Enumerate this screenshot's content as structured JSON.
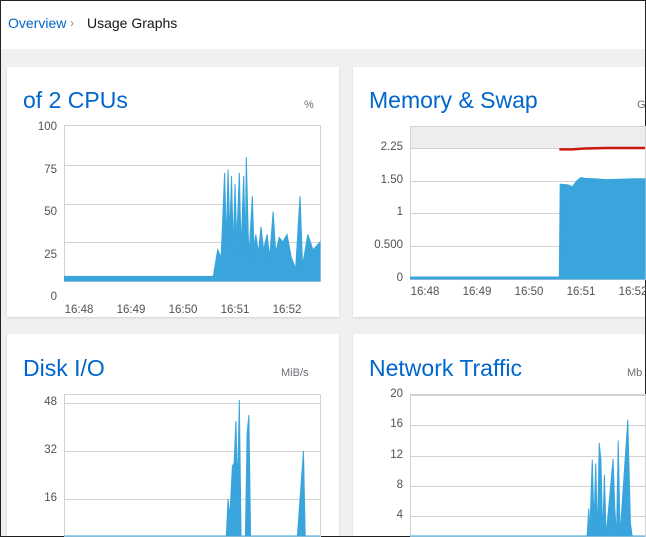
{
  "breadcrumb": {
    "parent": "Overview",
    "separator_icon": "chevron-right-icon",
    "current": "Usage Graphs"
  },
  "colors": {
    "accent": "#0066cc",
    "series": "#39a5dc",
    "swap": "#c9190b",
    "grid": "#d2d2d2"
  },
  "cards": [
    {
      "title": "of 2 CPUs",
      "unit": "%"
    },
    {
      "title": "Memory & Swap",
      "unit": "G"
    },
    {
      "title": "Disk I/O",
      "unit": "MiB/s"
    },
    {
      "title": "Network Traffic",
      "unit": "Mb"
    }
  ],
  "chart_data": [
    {
      "type": "area",
      "title": "of 2 CPUs",
      "ylabel": "%",
      "yticks": [
        "100",
        "75",
        "50",
        "25",
        "0"
      ],
      "ylim": [
        0,
        100
      ],
      "xticks": [
        "16:48",
        "16:49",
        "16:50",
        "16:51",
        "16:52"
      ],
      "points": [
        [
          "16:47:43",
          3
        ],
        [
          "16:50:35",
          3
        ],
        [
          "16:50:37",
          10
        ],
        [
          "16:50:40",
          20
        ],
        [
          "16:50:44",
          15
        ],
        [
          "16:50:48",
          70
        ],
        [
          "16:50:50",
          25
        ],
        [
          "16:50:52",
          72
        ],
        [
          "16:50:54",
          30
        ],
        [
          "16:50:56",
          68
        ],
        [
          "16:50:58",
          20
        ],
        [
          "16:51:00",
          63
        ],
        [
          "16:51:02",
          25
        ],
        [
          "16:51:05",
          70
        ],
        [
          "16:51:07",
          20
        ],
        [
          "16:51:10",
          68
        ],
        [
          "16:51:12",
          22
        ],
        [
          "16:51:13",
          80
        ],
        [
          "16:51:16",
          15
        ],
        [
          "16:51:20",
          55
        ],
        [
          "16:51:22",
          20
        ],
        [
          "16:51:24",
          30
        ],
        [
          "16:51:27",
          18
        ],
        [
          "16:51:30",
          35
        ],
        [
          "16:51:33",
          20
        ],
        [
          "16:51:37",
          30
        ],
        [
          "16:51:40",
          15
        ],
        [
          "16:51:44",
          45
        ],
        [
          "16:51:47",
          18
        ],
        [
          "16:51:51",
          28
        ],
        [
          "16:51:55",
          25
        ],
        [
          "16:52:00",
          30
        ],
        [
          "16:52:05",
          15
        ],
        [
          "16:52:10",
          8
        ],
        [
          "16:52:15",
          55
        ],
        [
          "16:52:18",
          10
        ],
        [
          "16:52:24",
          30
        ],
        [
          "16:52:30",
          20
        ],
        [
          "16:52:39",
          25
        ]
      ]
    },
    {
      "type": "area",
      "title": "Memory & Swap",
      "ylabel": "G",
      "yticks": [
        "2.25",
        "1.50",
        "1",
        "0.500",
        "0"
      ],
      "xticks": [
        "16:48",
        "16:49",
        "16:50",
        "16:51",
        "16:52"
      ],
      "series": [
        {
          "points": [
            [
              "16:47:43",
              0.03
            ],
            [
              "16:50:35",
              0.03
            ],
            [
              "16:50:36",
              1.45
            ],
            [
              "16:50:45",
              1.44
            ],
            [
              "16:50:50",
              1.41
            ],
            [
              "16:50:55",
              1.5
            ],
            [
              "16:51:00",
              1.58
            ],
            [
              "16:51:05",
              1.56
            ],
            [
              "16:51:15",
              1.55
            ],
            [
              "16:51:30",
              1.53
            ],
            [
              "16:51:45",
              1.54
            ],
            [
              "16:52:00",
              1.55
            ],
            [
              "16:52:18",
              1.55
            ]
          ]
        },
        {
          "points": [
            [
              "16:50:35",
              2.22
            ],
            [
              "16:50:50",
              2.22
            ],
            [
              "16:51:05",
              2.24
            ],
            [
              "16:51:30",
              2.25
            ],
            [
              "16:52:18",
              2.25
            ]
          ]
        }
      ]
    },
    {
      "type": "area",
      "title": "Disk I/O",
      "ylabel": "MiB/s",
      "yticks": [
        "48",
        "32",
        "16"
      ],
      "ylim": [
        0,
        48
      ],
      "points": [
        [
          "16:47:43",
          0
        ],
        [
          "16:50:48",
          0
        ],
        [
          "16:50:50",
          3
        ],
        [
          "16:50:52",
          16
        ],
        [
          "16:50:54",
          10
        ],
        [
          "16:50:57",
          27
        ],
        [
          "16:50:59",
          28
        ],
        [
          "16:51:01",
          42
        ],
        [
          "16:51:03",
          20
        ],
        [
          "16:51:05",
          49
        ],
        [
          "16:51:07",
          0
        ],
        [
          "16:51:10",
          3
        ],
        [
          "16:51:12",
          0
        ],
        [
          "16:51:14",
          38
        ],
        [
          "16:51:16",
          44
        ],
        [
          "16:51:18",
          0
        ],
        [
          "16:52:10",
          1
        ],
        [
          "16:52:12",
          0
        ],
        [
          "16:52:19",
          32
        ],
        [
          "16:52:21",
          0
        ],
        [
          "16:52:39",
          0
        ]
      ]
    },
    {
      "type": "area",
      "title": "Network Traffic",
      "ylabel": "Mb",
      "yticks": [
        "20",
        "16",
        "12",
        "8",
        "4"
      ],
      "ylim": [
        0,
        20
      ],
      "points": [
        [
          "16:47:43",
          0
        ],
        [
          "16:51:07",
          0
        ],
        [
          "16:51:09",
          5
        ],
        [
          "16:51:10",
          0
        ],
        [
          "16:51:13",
          11.5
        ],
        [
          "16:51:15",
          3
        ],
        [
          "16:51:17",
          11
        ],
        [
          "16:51:19",
          0
        ],
        [
          "16:51:21",
          13.7
        ],
        [
          "16:51:23",
          11.4
        ],
        [
          "16:51:25",
          0
        ],
        [
          "16:51:27",
          9.5
        ],
        [
          "16:51:29",
          0
        ],
        [
          "16:51:37",
          11.6
        ],
        [
          "16:51:39",
          5
        ],
        [
          "16:51:41",
          0
        ],
        [
          "16:51:43",
          14
        ],
        [
          "16:51:45",
          0
        ],
        [
          "16:51:54",
          16.7
        ],
        [
          "16:51:57",
          3
        ],
        [
          "16:51:59",
          0
        ],
        [
          "16:52:18",
          0
        ]
      ]
    }
  ]
}
